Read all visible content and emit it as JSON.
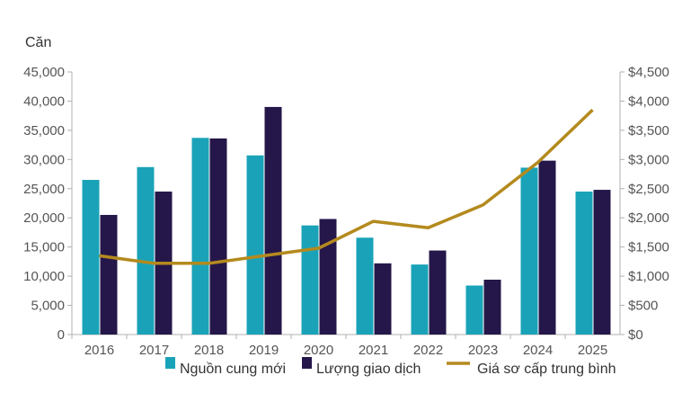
{
  "chart_data": {
    "type": "bar",
    "y_unit_label": "Căn",
    "categories": [
      "2016",
      "2017",
      "2018",
      "2019",
      "2020",
      "2021",
      "2022",
      "2023",
      "2024",
      "2025"
    ],
    "series": [
      {
        "name": "Nguồn cung mới",
        "type": "bar",
        "axis": "left",
        "color": "#1aa3b8",
        "values": [
          26500,
          28700,
          33700,
          30700,
          18700,
          16600,
          12000,
          8400,
          28600,
          24500
        ]
      },
      {
        "name": "Lượng giao dịch",
        "type": "bar",
        "axis": "left",
        "color": "#25174a",
        "values": [
          20500,
          24500,
          33600,
          39000,
          19800,
          12200,
          14400,
          9400,
          29800,
          24800
        ]
      },
      {
        "name": "Giá sơ cấp trung bình",
        "type": "line",
        "axis": "right",
        "color": "#b48a1e",
        "values": [
          1350,
          1220,
          1220,
          1350,
          1480,
          1940,
          1830,
          2220,
          2950,
          3850
        ]
      }
    ],
    "y_left": {
      "min": 0,
      "max": 45000,
      "ticks": [
        "0",
        "5,000",
        "10,000",
        "15,000",
        "20,000",
        "25,000",
        "30,000",
        "35,000",
        "40,000",
        "45,000"
      ]
    },
    "y_right": {
      "min": 0,
      "max": 4500,
      "ticks": [
        "$0",
        "$500",
        "$1,000",
        "$1,500",
        "$2,000",
        "$2,500",
        "$3,000",
        "$3,500",
        "$4,000",
        "$4,500"
      ]
    },
    "grid": false,
    "legend_position": "bottom"
  }
}
